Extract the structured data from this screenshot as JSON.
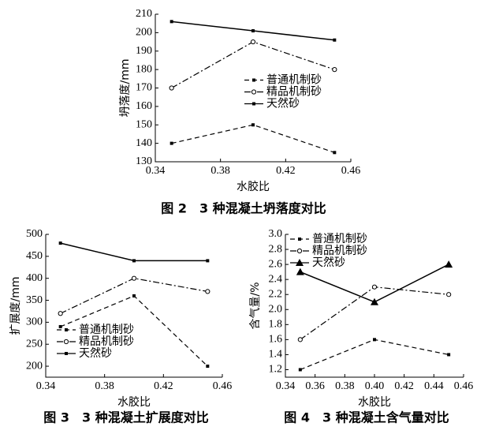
{
  "chart_data": [
    {
      "type": "line",
      "x_label": "水胶比",
      "y_label": "坍落度/mm",
      "caption": "图 2　3 种混凝土坍落度对比",
      "x": [
        0.35,
        0.4,
        0.45
      ],
      "xlim": [
        0.34,
        0.46
      ],
      "xticks": [
        0.34,
        0.38,
        0.42,
        0.46
      ],
      "ylim": [
        130,
        210
      ],
      "yticks": [
        130,
        140,
        150,
        160,
        170,
        180,
        190,
        200,
        210
      ],
      "legend": "center right",
      "series": [
        {
          "name": "普通机制砂",
          "color": "#000000",
          "line_style": "dashed",
          "marker": "square",
          "values": [
            140,
            150,
            135
          ]
        },
        {
          "name": "精品机制砂",
          "color": "#000000",
          "line_style": "dashdot",
          "marker": "circle",
          "values": [
            170,
            195,
            180
          ]
        },
        {
          "name": "天然砂",
          "color": "#000000",
          "line_style": "solid",
          "marker": "square",
          "values": [
            206,
            201,
            196
          ]
        }
      ]
    },
    {
      "type": "line",
      "x_label": "水胶比",
      "y_label": "扩展度/mm",
      "caption": "图 3　3 种混凝土扩展度对比",
      "x": [
        0.35,
        0.4,
        0.45
      ],
      "xlim": [
        0.34,
        0.46
      ],
      "xticks": [
        0.34,
        0.38,
        0.42,
        0.46
      ],
      "ylim": [
        175,
        500
      ],
      "yticks": [
        200,
        250,
        300,
        350,
        400,
        450,
        500
      ],
      "legend": "lower left",
      "series": [
        {
          "name": "普通机制砂",
          "color": "#000000",
          "line_style": "dashed",
          "marker": "square",
          "values": [
            290,
            360,
            200
          ]
        },
        {
          "name": "精品机制砂",
          "color": "#000000",
          "line_style": "dashdot",
          "marker": "circle",
          "values": [
            320,
            400,
            370
          ]
        },
        {
          "name": "天然砂",
          "color": "#000000",
          "line_style": "solid",
          "marker": "square",
          "values": [
            480,
            440,
            440
          ]
        }
      ]
    },
    {
      "type": "line",
      "x_label": "水胶比",
      "y_label": "含气量/%",
      "caption": "图 4　3 种混凝土含气量对比",
      "x": [
        0.35,
        0.4,
        0.45
      ],
      "xlim": [
        0.34,
        0.46
      ],
      "xticks": [
        0.34,
        0.36,
        0.38,
        {
          "value": 0.4,
          "label": "0.40"
        },
        0.42,
        0.44,
        0.46
      ],
      "ylim": [
        1.1,
        3.0
      ],
      "yticks": [
        1.2,
        1.4,
        1.6,
        1.8,
        {
          "value": 2,
          "label": "2.0"
        },
        2.2,
        2.4,
        2.6,
        2.8,
        {
          "value": 3,
          "label": "3.0"
        }
      ],
      "legend": "upper left",
      "series": [
        {
          "name": "普通机制砂",
          "color": "#000000",
          "line_style": "dashed",
          "marker": "square",
          "values": [
            1.2,
            1.6,
            1.4
          ]
        },
        {
          "name": "精品机制砂",
          "color": "#000000",
          "line_style": "dashdot",
          "marker": "circle",
          "values": [
            1.6,
            2.3,
            2.2
          ]
        },
        {
          "name": "天然砂",
          "color": "#000000",
          "line_style": "solid",
          "marker": "triangle",
          "values": [
            2.5,
            2.1,
            2.6
          ]
        }
      ]
    }
  ]
}
